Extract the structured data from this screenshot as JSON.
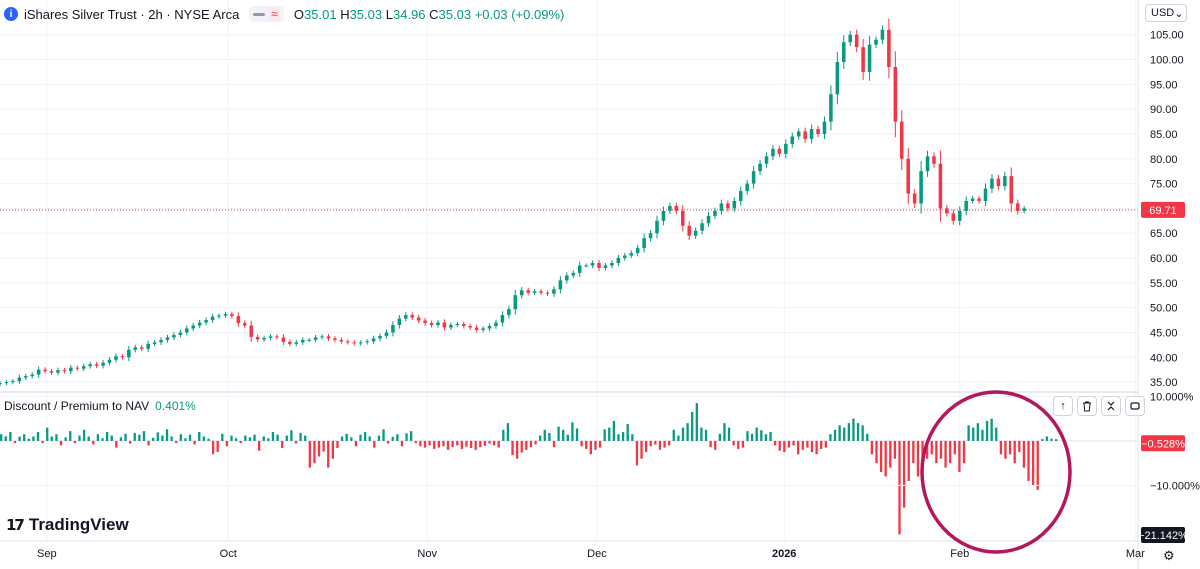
{
  "header": {
    "symbol_icon": "i",
    "title": "iShares Silver Trust · 2h · NYSE Arca",
    "pill_wave": "≈",
    "ohlc": {
      "o_label": "O",
      "o": "35.01",
      "h_label": "H",
      "h": "35.03",
      "l_label": "L",
      "l": "34.96",
      "c_label": "C",
      "c": "35.03",
      "chg": "+0.03 (+0.09%)"
    }
  },
  "currency_label": "USD",
  "colors": {
    "up": "#089981",
    "down": "#f23645",
    "annotation": "#b5175e",
    "label_dark": "#131722"
  },
  "indicator": {
    "title": "Discount / Premium to NAV",
    "value": "0.401%"
  },
  "logo_text": "TradingView",
  "chart_data": [
    {
      "type": "candlestick",
      "title": "iShares Silver Trust · 2h · NYSE Arca",
      "yticks": [
        "35.00",
        "40.00",
        "45.00",
        "50.00",
        "55.00",
        "60.00",
        "65.00",
        "70.00",
        "75.00",
        "80.00",
        "85.00",
        "90.00",
        "95.00",
        "100.00",
        "105.00"
      ],
      "ylim": [
        33,
        112
      ],
      "xlim": [
        0,
        176
      ],
      "x_ticks": [
        {
          "label": "Sep",
          "x": 8
        },
        {
          "label": "Oct",
          "x": 39
        },
        {
          "label": "Nov",
          "x": 73
        },
        {
          "label": "Dec",
          "x": 102
        },
        {
          "label": "2026",
          "x": 134,
          "bold": true
        },
        {
          "label": "Feb",
          "x": 164
        },
        {
          "label": "Mar",
          "x": 194
        }
      ],
      "last_price": "69.71",
      "last_value": 69.71,
      "closes": [
        34.8,
        35.0,
        35.2,
        35.9,
        36.2,
        36.5,
        37.5,
        37.2,
        36.9,
        37.4,
        37.2,
        37.9,
        37.7,
        38.2,
        38.6,
        38.3,
        38.9,
        39.5,
        40.2,
        40.0,
        41.5,
        42.0,
        41.7,
        42.7,
        43.0,
        43.5,
        44.0,
        44.5,
        45.0,
        45.8,
        46.4,
        47.0,
        47.5,
        48.2,
        48.4,
        48.7,
        48.3,
        46.9,
        46.4,
        44.1,
        43.6,
        43.9,
        44.2,
        44.0,
        43.1,
        42.7,
        43.0,
        43.5,
        43.5,
        44.0,
        44.2,
        43.8,
        43.5,
        43.2,
        43.0,
        42.8,
        43.0,
        43.2,
        43.8,
        44.3,
        45.0,
        46.5,
        47.8,
        48.5,
        48.0,
        47.4,
        46.9,
        46.5,
        47.0,
        46.0,
        46.5,
        46.7,
        46.3,
        46.0,
        45.5,
        45.8,
        46.3,
        47.0,
        48.5,
        49.7,
        52.5,
        53.5,
        53.0,
        53.3,
        53.0,
        52.8,
        53.7,
        55.5,
        56.5,
        57.0,
        58.5,
        58.5,
        59.0,
        58.0,
        58.5,
        59.0,
        60.0,
        60.5,
        61.0,
        62.0,
        64.0,
        65.0,
        67.5,
        69.5,
        70.5,
        69.5,
        66.5,
        64.5,
        65.5,
        67.0,
        68.5,
        69.5,
        71.0,
        70.0,
        71.5,
        73.5,
        75.0,
        77.5,
        79.0,
        80.5,
        82.0,
        81.0,
        83.0,
        84.5,
        85.5,
        84.0,
        86.0,
        85.0,
        87.5,
        93.0,
        99.5,
        103.5,
        105.0,
        102.5,
        97.5,
        103.0,
        104.0,
        106.0,
        98.5,
        87.5,
        80.0,
        73.0,
        71.0,
        77.5,
        80.5,
        79.0,
        70.0,
        69.0,
        67.5,
        69.5,
        71.5,
        72.0,
        71.5,
        74.0,
        76.0,
        74.5,
        76.5,
        71.0,
        69.5,
        70.0
      ],
      "final_x": 175
    },
    {
      "type": "histogram",
      "title": "Discount / Premium to NAV",
      "ylim": [
        -22.5,
        11
      ],
      "yticks": [
        {
          "label": "10.000%",
          "value": 10
        },
        {
          "label": "−10.000%",
          "value": -10
        }
      ],
      "current_label": "−0.528%",
      "current_value": -0.528,
      "min_label": "−21.142%",
      "min_value": -21.142,
      "last_value": 0.401,
      "values": [
        1.5,
        1.0,
        2.0,
        -0.5,
        1.0,
        1.5,
        0.5,
        1.0,
        2.0,
        -0.5,
        3.0,
        1.0,
        1.5,
        -1.0,
        0.8,
        2.2,
        -0.5,
        1.2,
        2.5,
        1.0,
        -0.8,
        1.5,
        0.6,
        2.0,
        1.2,
        -1.5,
        0.8,
        1.6,
        -0.6,
        1.8,
        1.4,
        2.2,
        -1.0,
        0.7,
        1.9,
        1.2,
        2.6,
        1.0,
        -0.5,
        1.5,
        0.6,
        1.4,
        -0.8,
        2.0,
        1.0,
        0.5,
        -3.0,
        -2.5,
        1.6,
        -1.2,
        1.2,
        0.6,
        -0.5,
        1.2,
        0.8,
        1.4,
        -2.2,
        1.0,
        0.6,
        2.0,
        1.4,
        -1.6,
        1.2,
        2.4,
        -0.6,
        1.8,
        1.2,
        -6.0,
        -5.0,
        -3.5,
        -2.4,
        -6.0,
        -4.0,
        -1.6,
        1.0,
        1.6,
        0.8,
        -1.2,
        1.4,
        2.0,
        1.0,
        -1.5,
        1.2,
        2.6,
        -0.6,
        0.9,
        1.5,
        -1.2,
        1.7,
        2.2,
        -0.5,
        -1.2,
        -1.5,
        -1.0,
        -1.8,
        -1.5,
        -1.2,
        -2.0,
        -1.4,
        -1.0,
        -1.8,
        -1.3,
        -1.6,
        -2.0,
        -1.4,
        -1.1,
        -0.6,
        -1.0,
        -1.5,
        2.5,
        4.0,
        -3.2,
        -4.0,
        -2.6,
        -2.0,
        -1.4,
        -0.8,
        1.2,
        2.5,
        1.8,
        -1.4,
        3.2,
        2.5,
        1.4,
        4.2,
        2.8,
        -1.2,
        -1.8,
        -3.0,
        -2.0,
        -1.5,
        2.6,
        3.0,
        4.5,
        1.5,
        2.0,
        3.8,
        1.5,
        -5.5,
        -4.0,
        -2.5,
        -1.2,
        -0.8,
        -2.0,
        -1.5,
        -1.0,
        2.5,
        1.2,
        3.0,
        4.0,
        6.5,
        8.5,
        3.0,
        2.5,
        -1.4,
        -2.0,
        1.6,
        4.0,
        3.0,
        -1.0,
        -1.8,
        -1.5,
        2.2,
        1.6,
        3.0,
        2.4,
        1.5,
        2.0,
        -1.0,
        -2.2,
        -2.5,
        -1.5,
        -1.0,
        -3.0,
        -2.0,
        -1.5,
        -2.5,
        -3.0,
        -1.8,
        -1.5,
        1.5,
        2.5,
        3.5,
        3.0,
        4.0,
        5.0,
        4.0,
        3.5,
        1.6,
        -3.0,
        -5.0,
        -7.0,
        -8.0,
        -6.0,
        -4.0,
        -21.0,
        -15.0,
        -9.0,
        -5.0,
        -8.0,
        -6.0,
        -4.0,
        -3.0,
        -5.0,
        -4.0,
        -6.0,
        -5.0,
        -3.0,
        -7.0,
        -5.0,
        3.5,
        3.0,
        4.0,
        2.5,
        4.5,
        5.0,
        3.0,
        -3.0,
        -4.0,
        -3.0,
        -5.0,
        -2.5,
        -6.0,
        -9.0,
        -10.0,
        -11.0,
        0.4,
        1.0,
        0.5,
        0.4
      ],
      "annotation": "ellipse"
    }
  ]
}
